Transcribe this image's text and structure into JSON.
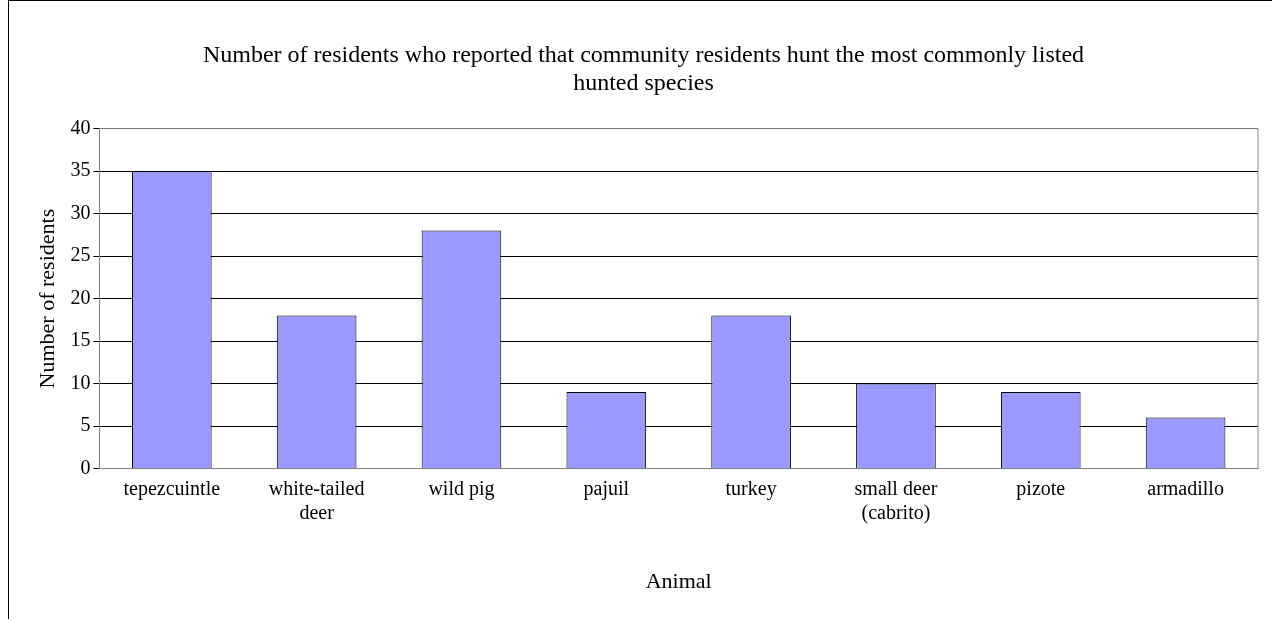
{
  "chart_data": {
    "type": "bar",
    "title": "Number of residents who reported that community residents hunt the most commonly listed hunted species",
    "xlabel": "Animal",
    "ylabel": "Number of residents",
    "categories": [
      "tepezcuintle",
      "white-tailed deer",
      "wild pig",
      "pajuil",
      "turkey",
      "small deer (cabrito)",
      "pizote",
      "armadillo"
    ],
    "values": [
      35,
      18,
      28,
      9,
      18,
      10,
      9,
      6
    ],
    "color": "#9999ff",
    "ylim": [
      0,
      40
    ],
    "yticks": [
      0,
      5,
      10,
      15,
      20,
      25,
      30,
      35,
      40
    ],
    "grid": "y",
    "legend": false
  }
}
